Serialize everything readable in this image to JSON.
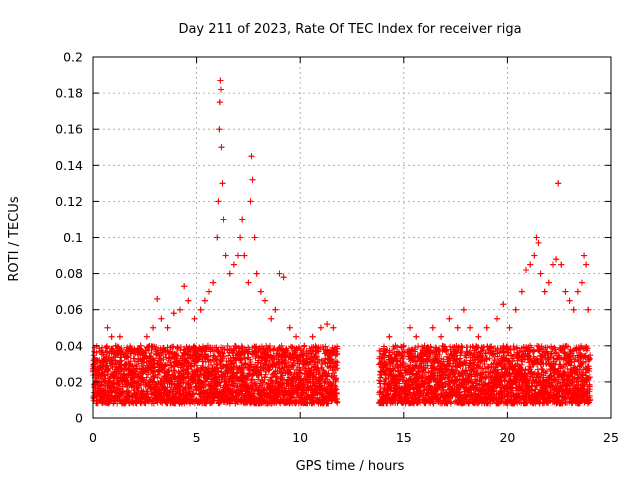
{
  "chart_data": {
    "type": "scatter",
    "title": "Day 211 of 2023, Rate Of TEC Index for receiver riga",
    "xlabel": "GPS time / hours",
    "ylabel": "ROTI / TECUs",
    "xlim": [
      0,
      25
    ],
    "ylim": [
      0,
      0.2
    ],
    "xticks": [
      0,
      5,
      10,
      15,
      20,
      25
    ],
    "yticks": [
      0,
      0.02,
      0.04,
      0.06,
      0.08,
      0.1,
      0.12,
      0.14,
      0.16,
      0.18,
      0.2
    ],
    "xtick_labels": [
      "0",
      "5",
      "10",
      "15",
      "20",
      "25"
    ],
    "ytick_labels": [
      "0",
      "0.02",
      "0.04",
      "0.06",
      "0.08",
      "0.1",
      "0.12",
      "0.14",
      "0.16",
      "0.18",
      "0.2"
    ],
    "grid": true,
    "marker": "+",
    "series_color": "#ff0000",
    "data_gap_hours": [
      11.8,
      13.8
    ],
    "points": [
      [
        0.1,
        0.03
      ],
      [
        0.3,
        0.025
      ],
      [
        0.5,
        0.035
      ],
      [
        0.7,
        0.05
      ],
      [
        0.9,
        0.045
      ],
      [
        1.1,
        0.04
      ],
      [
        1.3,
        0.045
      ],
      [
        1.6,
        0.03
      ],
      [
        2.0,
        0.038
      ],
      [
        2.3,
        0.04
      ],
      [
        2.6,
        0.045
      ],
      [
        2.9,
        0.05
      ],
      [
        3.1,
        0.066
      ],
      [
        3.3,
        0.055
      ],
      [
        3.6,
        0.05
      ],
      [
        3.9,
        0.058
      ],
      [
        4.2,
        0.06
      ],
      [
        4.4,
        0.073
      ],
      [
        4.6,
        0.065
      ],
      [
        4.9,
        0.055
      ],
      [
        5.2,
        0.06
      ],
      [
        5.4,
        0.065
      ],
      [
        5.6,
        0.07
      ],
      [
        5.8,
        0.075
      ],
      [
        6.0,
        0.1
      ],
      [
        6.05,
        0.12
      ],
      [
        6.1,
        0.16
      ],
      [
        6.12,
        0.175
      ],
      [
        6.15,
        0.187
      ],
      [
        6.18,
        0.182
      ],
      [
        6.2,
        0.15
      ],
      [
        6.25,
        0.13
      ],
      [
        6.3,
        0.11
      ],
      [
        6.4,
        0.09
      ],
      [
        6.6,
        0.08
      ],
      [
        6.8,
        0.085
      ],
      [
        7.0,
        0.09
      ],
      [
        7.1,
        0.1
      ],
      [
        7.2,
        0.11
      ],
      [
        7.3,
        0.09
      ],
      [
        7.5,
        0.075
      ],
      [
        7.6,
        0.12
      ],
      [
        7.65,
        0.145
      ],
      [
        7.7,
        0.132
      ],
      [
        7.8,
        0.1
      ],
      [
        7.9,
        0.08
      ],
      [
        8.1,
        0.07
      ],
      [
        8.3,
        0.065
      ],
      [
        8.6,
        0.055
      ],
      [
        8.8,
        0.06
      ],
      [
        9.0,
        0.08
      ],
      [
        9.2,
        0.078
      ],
      [
        9.5,
        0.05
      ],
      [
        9.8,
        0.045
      ],
      [
        10.2,
        0.04
      ],
      [
        10.6,
        0.045
      ],
      [
        11.0,
        0.05
      ],
      [
        11.3,
        0.052
      ],
      [
        11.6,
        0.05
      ],
      [
        14.0,
        0.035
      ],
      [
        14.3,
        0.045
      ],
      [
        14.6,
        0.04
      ],
      [
        15.0,
        0.04
      ],
      [
        15.3,
        0.05
      ],
      [
        15.6,
        0.045
      ],
      [
        16.0,
        0.04
      ],
      [
        16.4,
        0.05
      ],
      [
        16.8,
        0.045
      ],
      [
        17.2,
        0.055
      ],
      [
        17.6,
        0.05
      ],
      [
        17.9,
        0.06
      ],
      [
        18.2,
        0.05
      ],
      [
        18.6,
        0.045
      ],
      [
        19.0,
        0.05
      ],
      [
        19.5,
        0.055
      ],
      [
        19.8,
        0.063
      ],
      [
        20.1,
        0.05
      ],
      [
        20.4,
        0.06
      ],
      [
        20.7,
        0.07
      ],
      [
        20.9,
        0.082
      ],
      [
        21.1,
        0.085
      ],
      [
        21.3,
        0.09
      ],
      [
        21.4,
        0.1
      ],
      [
        21.5,
        0.097
      ],
      [
        21.6,
        0.08
      ],
      [
        21.8,
        0.07
      ],
      [
        22.0,
        0.075
      ],
      [
        22.2,
        0.085
      ],
      [
        22.35,
        0.088
      ],
      [
        22.45,
        0.13
      ],
      [
        22.6,
        0.085
      ],
      [
        22.8,
        0.07
      ],
      [
        23.0,
        0.065
      ],
      [
        23.2,
        0.06
      ],
      [
        23.4,
        0.07
      ],
      [
        23.6,
        0.075
      ],
      [
        23.7,
        0.09
      ],
      [
        23.8,
        0.085
      ],
      [
        23.9,
        0.06
      ]
    ],
    "band": {
      "description_ranges": [
        [
          0.0,
          11.8
        ],
        [
          13.8,
          24.0
        ]
      ],
      "typical_min": 0.008,
      "typical_max": 0.04
    }
  }
}
